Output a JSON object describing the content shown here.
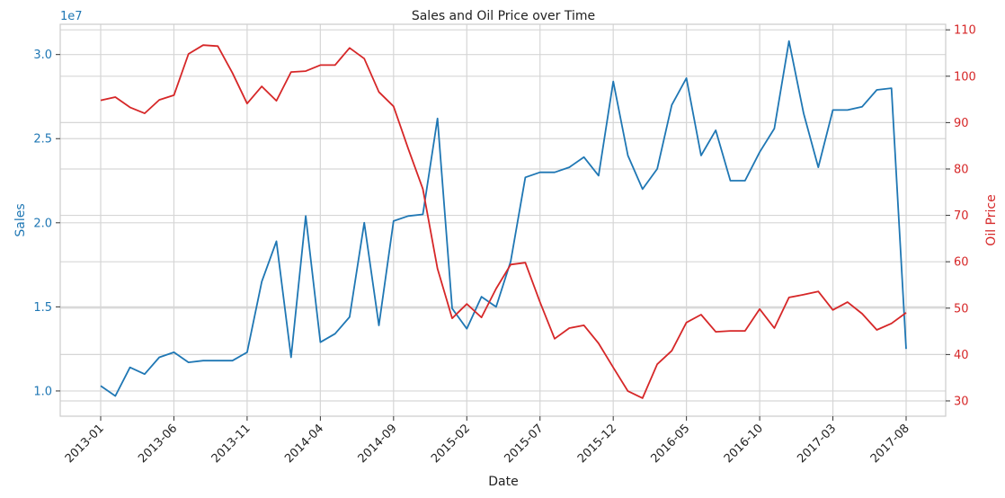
{
  "chart_data": {
    "type": "line",
    "title": "Sales and Oil Price over Time",
    "xlabel": "Date",
    "x": [
      "2013-01",
      "2013-02",
      "2013-03",
      "2013-04",
      "2013-05",
      "2013-06",
      "2013-07",
      "2013-08",
      "2013-09",
      "2013-10",
      "2013-11",
      "2013-12",
      "2014-01",
      "2014-02",
      "2014-03",
      "2014-04",
      "2014-05",
      "2014-06",
      "2014-07",
      "2014-08",
      "2014-09",
      "2014-10",
      "2014-11",
      "2014-12",
      "2015-01",
      "2015-02",
      "2015-03",
      "2015-04",
      "2015-05",
      "2015-06",
      "2015-07",
      "2015-08",
      "2015-09",
      "2015-10",
      "2015-11",
      "2015-12",
      "2016-01",
      "2016-02",
      "2016-03",
      "2016-04",
      "2016-05",
      "2016-06",
      "2016-07",
      "2016-08",
      "2016-09",
      "2016-10",
      "2016-11",
      "2016-12",
      "2017-01",
      "2017-02",
      "2017-03",
      "2017-04",
      "2017-05",
      "2017-06",
      "2017-07",
      "2017-08"
    ],
    "xticks": [
      "2013-01",
      "2013-06",
      "2013-11",
      "2014-04",
      "2014-09",
      "2015-02",
      "2015-07",
      "2015-12",
      "2016-05",
      "2016-10",
      "2017-03",
      "2017-08"
    ],
    "left_axis": {
      "label": "Sales",
      "offset_label": "1e7",
      "ticks": [
        "1.0",
        "1.5",
        "2.0",
        "2.5",
        "3.0"
      ],
      "ylim": [
        0.85,
        3.18
      ],
      "color": "#1f77b4"
    },
    "right_axis": {
      "label": "Oil Price",
      "ticks": [
        "30",
        "40",
        "50",
        "60",
        "70",
        "80",
        "90",
        "100",
        "110"
      ],
      "ylim": [
        26.7,
        111.2
      ],
      "color": "#d62728"
    },
    "series": [
      {
        "name": "Sales",
        "axis": "left",
        "unit_scale": "1e7",
        "color": "#1f77b4",
        "values": [
          1.03,
          0.97,
          1.14,
          1.1,
          1.2,
          1.23,
          1.17,
          1.18,
          1.18,
          1.18,
          1.23,
          1.65,
          1.89,
          1.2,
          2.04,
          1.29,
          1.34,
          1.44,
          2.0,
          1.39,
          2.01,
          2.04,
          2.05,
          2.62,
          1.49,
          1.37,
          1.56,
          1.5,
          1.77,
          2.27,
          2.3,
          2.3,
          2.33,
          2.39,
          2.28,
          2.84,
          2.4,
          2.2,
          2.32,
          2.7,
          2.86,
          2.4,
          2.55,
          2.25,
          2.25,
          2.42,
          2.56,
          3.08,
          2.65,
          2.33,
          2.67,
          2.67,
          2.69,
          2.79,
          2.8,
          1.25
        ]
      },
      {
        "name": "Oil Price",
        "axis": "right",
        "color": "#d62728",
        "values": [
          94.8,
          95.5,
          93.3,
          92.0,
          94.9,
          95.9,
          104.8,
          106.7,
          106.5,
          100.7,
          94.1,
          97.8,
          94.7,
          100.9,
          101.1,
          102.4,
          102.4,
          106.1,
          103.8,
          96.6,
          93.5,
          84.4,
          75.7,
          58.5,
          47.8,
          50.9,
          48.0,
          54.2,
          59.4,
          59.8,
          51.3,
          43.4,
          45.7,
          46.3,
          42.4,
          37.2,
          32.1,
          30.6,
          37.9,
          40.8,
          46.9,
          48.6,
          44.9,
          45.1,
          45.1,
          49.8,
          45.7,
          52.3,
          52.9,
          53.6,
          49.6,
          51.3,
          48.8,
          45.3,
          46.7,
          49.0
        ]
      }
    ],
    "grid": true
  }
}
